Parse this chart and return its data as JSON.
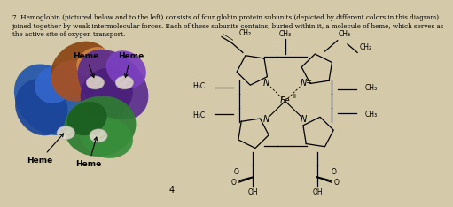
{
  "background_color": "#d4c9a8",
  "page_number": "4",
  "title_text": "7. Hemoglobin (pictured below and to the left) consists of four globin protein subunits (depicted by different colors in this diagram)\njoined together by weak intermolecular forces. Each of these subunits contains, buried within it, a molecule of heme, which serves as\nthe active site of oxygen transport."
}
